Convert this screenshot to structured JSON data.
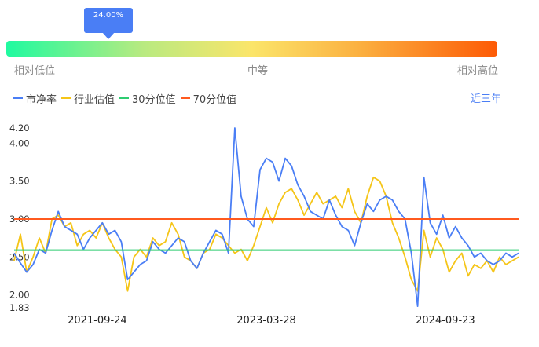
{
  "gauge": {
    "marker_label": "24.00%",
    "marker_percent": 24.0,
    "label_low": "相对低位",
    "label_mid": "中等",
    "label_high": "相对高位"
  },
  "legend": {
    "items": [
      {
        "label": "市净率",
        "color": "#4a7ef5"
      },
      {
        "label": "行业估值",
        "color": "#f5c518"
      },
      {
        "label": "30分位值",
        "color": "#2ecc71"
      },
      {
        "label": "70分位值",
        "color": "#ff5a1f"
      }
    ],
    "period": "近三年"
  },
  "chart_data": {
    "type": "line",
    "x_ticks": [
      "2021-09-24",
      "2023-03-28",
      "2024-09-23"
    ],
    "y_ticks": [
      "4.20",
      "4.00",
      "3.50",
      "3.00",
      "2.50",
      "2.00",
      "1.83"
    ],
    "ylim": [
      1.83,
      4.2
    ],
    "reference_lines": [
      {
        "name": "30分位值",
        "value": 2.59,
        "color": "#2ecc71"
      },
      {
        "name": "70分位值",
        "value": 3.0,
        "color": "#ff5a1f"
      }
    ],
    "series": [
      {
        "name": "市净率",
        "color": "#4a7ef5",
        "values": [
          2.55,
          2.42,
          2.3,
          2.4,
          2.6,
          2.55,
          2.85,
          3.1,
          2.9,
          2.85,
          2.8,
          2.6,
          2.75,
          2.85,
          2.95,
          2.8,
          2.85,
          2.7,
          2.2,
          2.3,
          2.4,
          2.45,
          2.7,
          2.6,
          2.55,
          2.65,
          2.75,
          2.7,
          2.45,
          2.35,
          2.55,
          2.7,
          2.85,
          2.8,
          2.55,
          4.2,
          3.3,
          3.0,
          2.9,
          3.65,
          3.8,
          3.75,
          3.5,
          3.8,
          3.7,
          3.45,
          3.3,
          3.1,
          3.05,
          3.0,
          3.25,
          3.05,
          2.9,
          2.85,
          2.65,
          2.95,
          3.2,
          3.1,
          3.25,
          3.3,
          3.25,
          3.1,
          3.0,
          2.55,
          1.85,
          3.55,
          2.95,
          2.8,
          3.05,
          2.75,
          2.9,
          2.75,
          2.65,
          2.5,
          2.55,
          2.45,
          2.4,
          2.45,
          2.55,
          2.5,
          2.55
        ]
      },
      {
        "name": "行业估值",
        "color": "#f5c518",
        "values": [
          2.45,
          2.8,
          2.3,
          2.5,
          2.75,
          2.55,
          3.0,
          3.05,
          2.9,
          2.95,
          2.65,
          2.8,
          2.85,
          2.75,
          2.95,
          2.75,
          2.6,
          2.5,
          2.05,
          2.5,
          2.6,
          2.5,
          2.75,
          2.65,
          2.7,
          2.95,
          2.8,
          2.5,
          2.45,
          2.35,
          2.55,
          2.6,
          2.8,
          2.75,
          2.65,
          2.55,
          2.6,
          2.45,
          2.65,
          2.9,
          3.15,
          2.95,
          3.2,
          3.35,
          3.4,
          3.25,
          3.05,
          3.2,
          3.35,
          3.2,
          3.25,
          3.3,
          3.15,
          3.4,
          3.1,
          2.95,
          3.3,
          3.55,
          3.5,
          3.3,
          2.95,
          2.75,
          2.5,
          2.2,
          2.05,
          2.85,
          2.5,
          2.75,
          2.6,
          2.3,
          2.45,
          2.55,
          2.25,
          2.4,
          2.35,
          2.45,
          2.3,
          2.5,
          2.4,
          2.45,
          2.5
        ]
      }
    ]
  }
}
